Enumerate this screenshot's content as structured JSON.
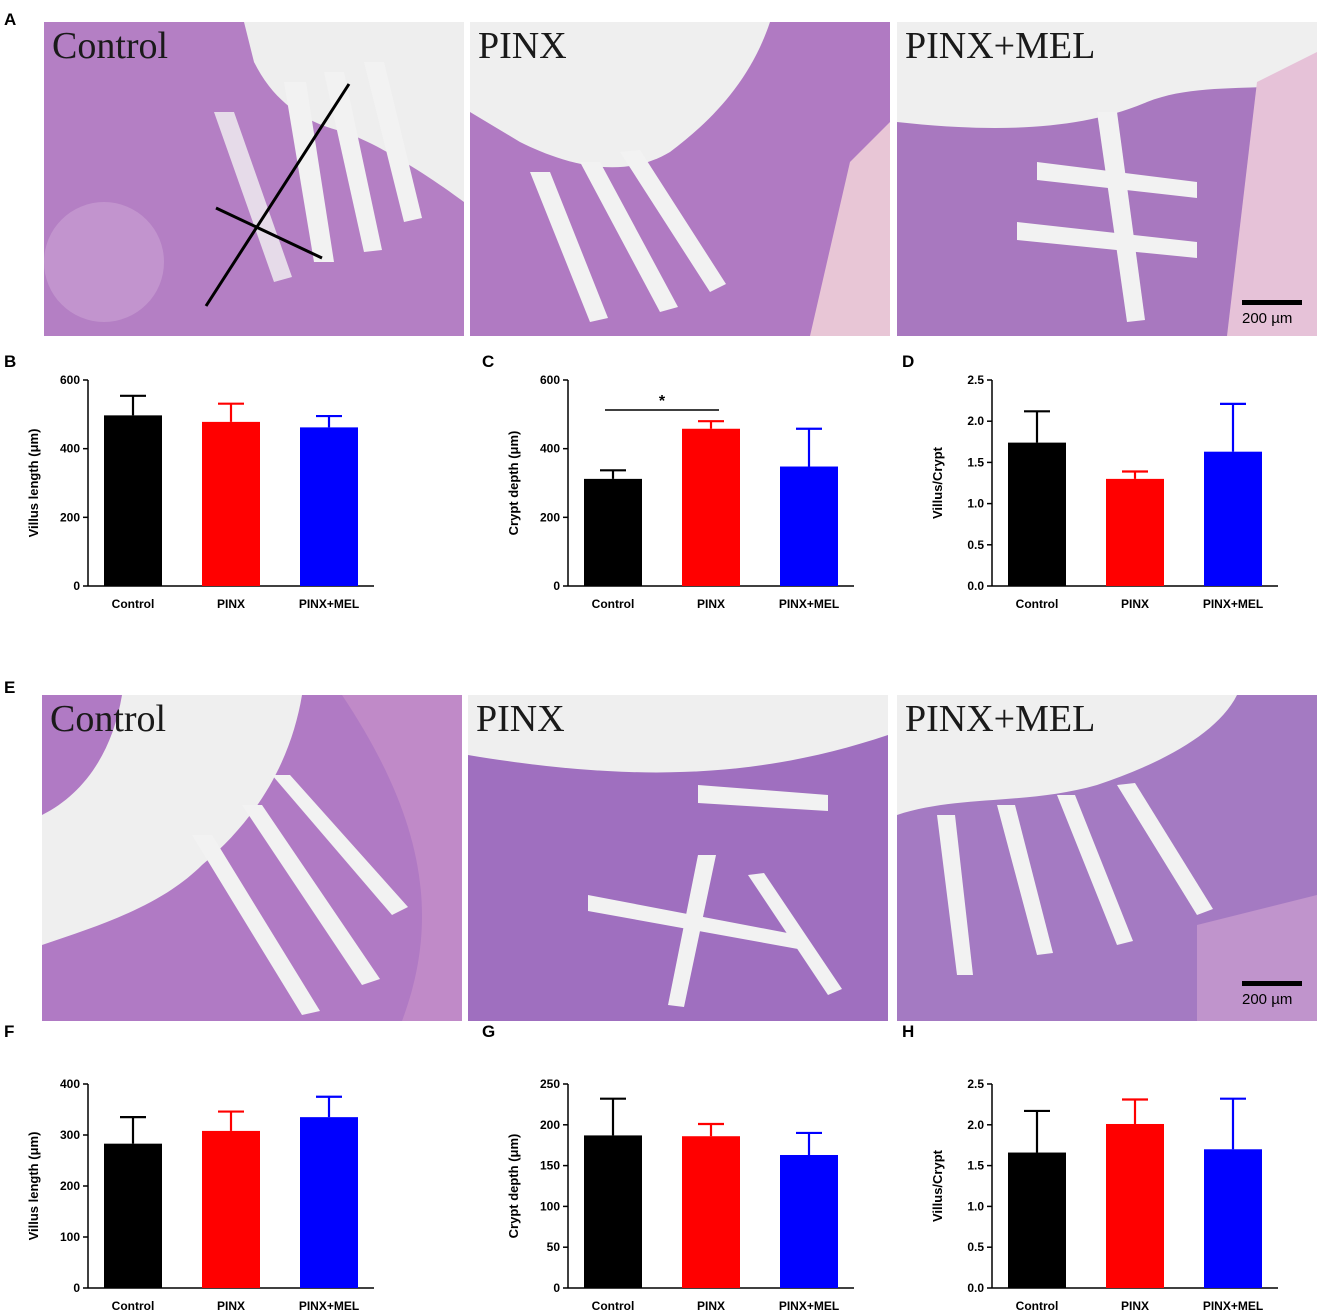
{
  "panel_letters": [
    "A",
    "B",
    "C",
    "D",
    "E",
    "F",
    "G",
    "H"
  ],
  "micrographs": {
    "top": [
      {
        "label": "Control"
      },
      {
        "label": "PINX"
      },
      {
        "label": "PINX+MEL",
        "scale_label": "200 µm"
      }
    ],
    "bottom": [
      {
        "label": "Control"
      },
      {
        "label": "PINX"
      },
      {
        "label": "PINX+MEL",
        "scale_label": "200 µm"
      }
    ]
  },
  "colors": {
    "control": "#000000",
    "pinx": "#ff0000",
    "pinx_mel": "#0000ff",
    "tissue": "#b47fc4",
    "lumen": "#f2f2f2"
  },
  "chart_data": [
    {
      "panel": "B",
      "type": "bar",
      "categories": [
        "Control",
        "PINX",
        "PINX+MEL"
      ],
      "values": [
        497,
        478,
        462
      ],
      "errors": [
        57,
        53,
        33
      ],
      "ylabel": "Villus length (μm)",
      "ylim": [
        0,
        600
      ],
      "yticks": [
        0,
        200,
        400,
        600
      ],
      "yticklabels": [
        "0",
        "200",
        "400",
        "600"
      ]
    },
    {
      "panel": "C",
      "type": "bar",
      "categories": [
        "Control",
        "PINX",
        "PINX+MEL"
      ],
      "values": [
        312,
        458,
        348
      ],
      "errors": [
        25,
        22,
        110
      ],
      "ylabel": "Crypt depth (μm)",
      "ylim": [
        0,
        600
      ],
      "yticks": [
        0,
        200,
        400,
        600
      ],
      "yticklabels": [
        "0",
        "200",
        "400",
        "600"
      ],
      "significance": {
        "from": 0,
        "to": 1,
        "label": "*"
      }
    },
    {
      "panel": "D",
      "type": "bar",
      "categories": [
        "Control",
        "PINX",
        "PINX+MEL"
      ],
      "values": [
        1.74,
        1.3,
        1.63
      ],
      "errors": [
        0.38,
        0.09,
        0.58
      ],
      "ylabel": "Villus/Crypt",
      "ylim": [
        0,
        2.5
      ],
      "yticks": [
        0,
        0.5,
        1,
        1.5,
        2,
        2.5
      ],
      "yticklabels": [
        "0.0",
        "0.5",
        "1.0",
        "1.5",
        "2.0",
        "2.5"
      ]
    },
    {
      "panel": "F",
      "type": "bar",
      "categories": [
        "Control",
        "PINX",
        "PINX+MEL"
      ],
      "values": [
        283,
        308,
        335
      ],
      "errors": [
        52,
        38,
        40
      ],
      "ylabel": "Villus length (μm)",
      "ylim": [
        0,
        400
      ],
      "yticks": [
        0,
        100,
        200,
        300,
        400
      ],
      "yticklabels": [
        "0",
        "100",
        "200",
        "300",
        "400"
      ]
    },
    {
      "panel": "G",
      "type": "bar",
      "categories": [
        "Control",
        "PINX",
        "PINX+MEL"
      ],
      "values": [
        187,
        186,
        163
      ],
      "errors": [
        45,
        15,
        27
      ],
      "ylabel": "Crypt depth (μm)",
      "ylim": [
        0,
        250
      ],
      "yticks": [
        0,
        50,
        100,
        150,
        200,
        250
      ],
      "yticklabels": [
        "0",
        "50",
        "100",
        "150",
        "200",
        "250"
      ]
    },
    {
      "panel": "H",
      "type": "bar",
      "categories": [
        "Control",
        "PINX",
        "PINX+MEL"
      ],
      "values": [
        1.66,
        2.01,
        1.7
      ],
      "errors": [
        0.51,
        0.3,
        0.62
      ],
      "ylabel": "Villus/Crypt",
      "ylim": [
        0,
        2.5
      ],
      "yticks": [
        0,
        0.5,
        1,
        1.5,
        2,
        2.5
      ],
      "yticklabels": [
        "0.0",
        "0.5",
        "1.0",
        "1.5",
        "2.0",
        "2.5"
      ]
    }
  ]
}
